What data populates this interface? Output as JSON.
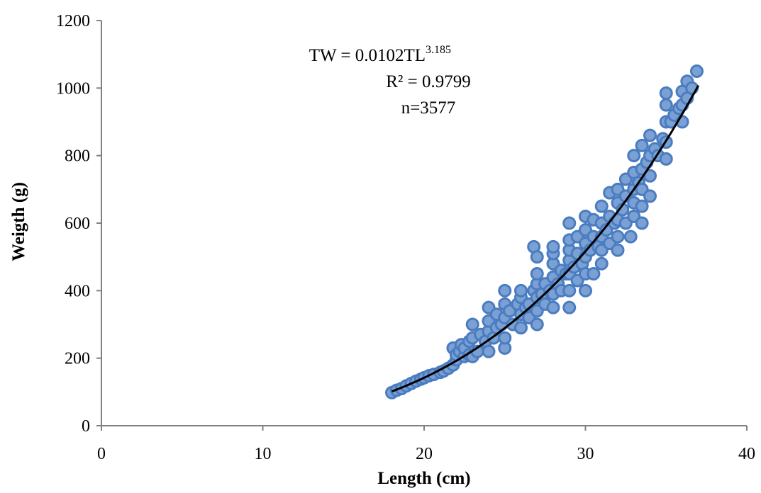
{
  "chart_data": {
    "type": "scatter",
    "title": "",
    "xlabel": "Length (cm)",
    "ylabel": "Weigth (g)",
    "xlim": [
      0,
      40
    ],
    "ylim": [
      0,
      1200
    ],
    "xticks": [
      0,
      10,
      20,
      30,
      40
    ],
    "yticks": [
      0,
      200,
      400,
      600,
      800,
      1000,
      1200
    ],
    "grid": false,
    "legend": "none",
    "marker_fill": "#7ba0d4",
    "marker_edge": "#4a7cc0",
    "trend_color": "#000000",
    "annotation": {
      "equation_base": "TW = 0.0102TL",
      "equation_exponent": "3.185",
      "r2": "R² = 0.9799",
      "n": "n=3577"
    },
    "trendline": {
      "a": 0.0102,
      "b": 3.185,
      "x_start": 18,
      "x_end": 37
    },
    "series": [
      {
        "points": [
          [
            18,
            98
          ],
          [
            18.3,
            105
          ],
          [
            18.6,
            110
          ],
          [
            18.9,
            118
          ],
          [
            19.2,
            125
          ],
          [
            19.5,
            132
          ],
          [
            19.8,
            138
          ],
          [
            20,
            142
          ],
          [
            20.3,
            148
          ],
          [
            20.6,
            152
          ],
          [
            21,
            158
          ],
          [
            21.2,
            162
          ],
          [
            21.5,
            170
          ],
          [
            21.8,
            180
          ],
          [
            21.8,
            230
          ],
          [
            22,
            195
          ],
          [
            22,
            210
          ],
          [
            22.2,
            220
          ],
          [
            22.3,
            240
          ],
          [
            22.5,
            205
          ],
          [
            22.5,
            230
          ],
          [
            22.8,
            210
          ],
          [
            22.8,
            250
          ],
          [
            23,
            205
          ],
          [
            23,
            300
          ],
          [
            23,
            260
          ],
          [
            23.3,
            220
          ],
          [
            23.5,
            270
          ],
          [
            23.8,
            250
          ],
          [
            24,
            220
          ],
          [
            24,
            280
          ],
          [
            24,
            310
          ],
          [
            24,
            350
          ],
          [
            24.3,
            260
          ],
          [
            24.5,
            290
          ],
          [
            24.5,
            330
          ],
          [
            24.8,
            300
          ],
          [
            25,
            230
          ],
          [
            25,
            260
          ],
          [
            25,
            320
          ],
          [
            25,
            360
          ],
          [
            25,
            400
          ],
          [
            25.3,
            340
          ],
          [
            25.5,
            300
          ],
          [
            25.8,
            360
          ],
          [
            26,
            290
          ],
          [
            26,
            330
          ],
          [
            26,
            380
          ],
          [
            26,
            400
          ],
          [
            26.3,
            350
          ],
          [
            26.5,
            320
          ],
          [
            26.5,
            360
          ],
          [
            26.8,
            400
          ],
          [
            26.8,
            530
          ],
          [
            27,
            300
          ],
          [
            27,
            340
          ],
          [
            27,
            380
          ],
          [
            27,
            420
          ],
          [
            27,
            450
          ],
          [
            27,
            500
          ],
          [
            27.3,
            390
          ],
          [
            27.5,
            360
          ],
          [
            27.5,
            420
          ],
          [
            27.8,
            400
          ],
          [
            28,
            350
          ],
          [
            28,
            390
          ],
          [
            28,
            440
          ],
          [
            28,
            480
          ],
          [
            28,
            510
          ],
          [
            28,
            530
          ],
          [
            28.3,
            420
          ],
          [
            28.5,
            460
          ],
          [
            28.5,
            400
          ],
          [
            28.8,
            450
          ],
          [
            29,
            350
          ],
          [
            29,
            400
          ],
          [
            29,
            450
          ],
          [
            29,
            490
          ],
          [
            29,
            520
          ],
          [
            29,
            550
          ],
          [
            29,
            600
          ],
          [
            29.3,
            470
          ],
          [
            29.5,
            430
          ],
          [
            29.5,
            510
          ],
          [
            29.5,
            560
          ],
          [
            29.8,
            480
          ],
          [
            30,
            400
          ],
          [
            30,
            450
          ],
          [
            30,
            500
          ],
          [
            30,
            540
          ],
          [
            30,
            580
          ],
          [
            30,
            620
          ],
          [
            30.3,
            520
          ],
          [
            30.5,
            450
          ],
          [
            30.5,
            560
          ],
          [
            30.5,
            610
          ],
          [
            30.8,
            530
          ],
          [
            31,
            480
          ],
          [
            31,
            520
          ],
          [
            31,
            560
          ],
          [
            31,
            600
          ],
          [
            31,
            650
          ],
          [
            31.3,
            580
          ],
          [
            31.5,
            540
          ],
          [
            31.5,
            620
          ],
          [
            31.5,
            690
          ],
          [
            31.8,
            600
          ],
          [
            32,
            520
          ],
          [
            32,
            560
          ],
          [
            32,
            610
          ],
          [
            32,
            660
          ],
          [
            32,
            700
          ],
          [
            32.3,
            640
          ],
          [
            32.5,
            600
          ],
          [
            32.5,
            680
          ],
          [
            32.5,
            730
          ],
          [
            32.8,
            560
          ],
          [
            33,
            620
          ],
          [
            33,
            660
          ],
          [
            33,
            700
          ],
          [
            33,
            750
          ],
          [
            33,
            800
          ],
          [
            33.3,
            720
          ],
          [
            33.5,
            600
          ],
          [
            33.5,
            650
          ],
          [
            33.5,
            700
          ],
          [
            33.5,
            760
          ],
          [
            33.5,
            830
          ],
          [
            33.8,
            780
          ],
          [
            34,
            680
          ],
          [
            34,
            740
          ],
          [
            34,
            800
          ],
          [
            34,
            860
          ],
          [
            34.3,
            820
          ],
          [
            34.5,
            800
          ],
          [
            34.8,
            850
          ],
          [
            35,
            790
          ],
          [
            35,
            840
          ],
          [
            35,
            900
          ],
          [
            35,
            950
          ],
          [
            35,
            985
          ],
          [
            35.3,
            900
          ],
          [
            35.5,
            920
          ],
          [
            35.8,
            940
          ],
          [
            36,
            900
          ],
          [
            36,
            950
          ],
          [
            36,
            990
          ],
          [
            36.3,
            970
          ],
          [
            36.3,
            1020
          ],
          [
            36.6,
            1000
          ],
          [
            36.9,
            1050
          ]
        ]
      }
    ]
  }
}
